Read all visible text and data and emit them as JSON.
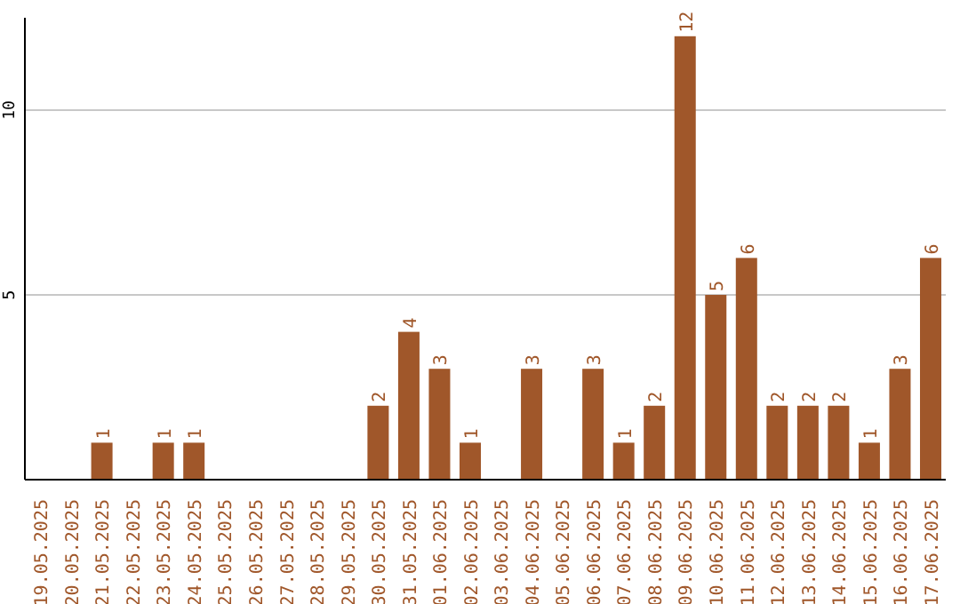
{
  "chart_data": {
    "type": "bar",
    "categories": [
      "19.05.2025",
      "20.05.2025",
      "21.05.2025",
      "22.05.2025",
      "23.05.2025",
      "24.05.2025",
      "25.05.2025",
      "26.05.2025",
      "27.05.2025",
      "28.05.2025",
      "29.05.2025",
      "30.05.2025",
      "31.05.2025",
      "01.06.2025",
      "02.06.2025",
      "03.06.2025",
      "04.06.2025",
      "05.06.2025",
      "06.06.2025",
      "07.06.2025",
      "08.06.2025",
      "09.06.2025",
      "10.06.2025",
      "11.06.2025",
      "12.06.2025",
      "13.06.2025",
      "14.06.2025",
      "15.06.2025",
      "16.06.2025",
      "17.06.2025"
    ],
    "values": [
      0,
      0,
      1,
      0,
      1,
      1,
      0,
      0,
      0,
      0,
      0,
      2,
      4,
      3,
      1,
      0,
      3,
      0,
      3,
      1,
      2,
      12,
      5,
      6,
      2,
      2,
      2,
      1,
      3,
      6
    ],
    "value_labels": [
      null,
      null,
      "1",
      null,
      "1",
      "1",
      null,
      null,
      null,
      null,
      null,
      "2",
      "4",
      "3",
      "1",
      null,
      "3",
      null,
      "3",
      "1",
      "2",
      "12",
      "5",
      "6",
      "2",
      "2",
      "2",
      "1",
      "3",
      "6"
    ],
    "color": "#a0572a",
    "ylim": [
      0,
      12.5
    ],
    "yticks": [
      5,
      10
    ],
    "grid": "y",
    "legend": false
  }
}
